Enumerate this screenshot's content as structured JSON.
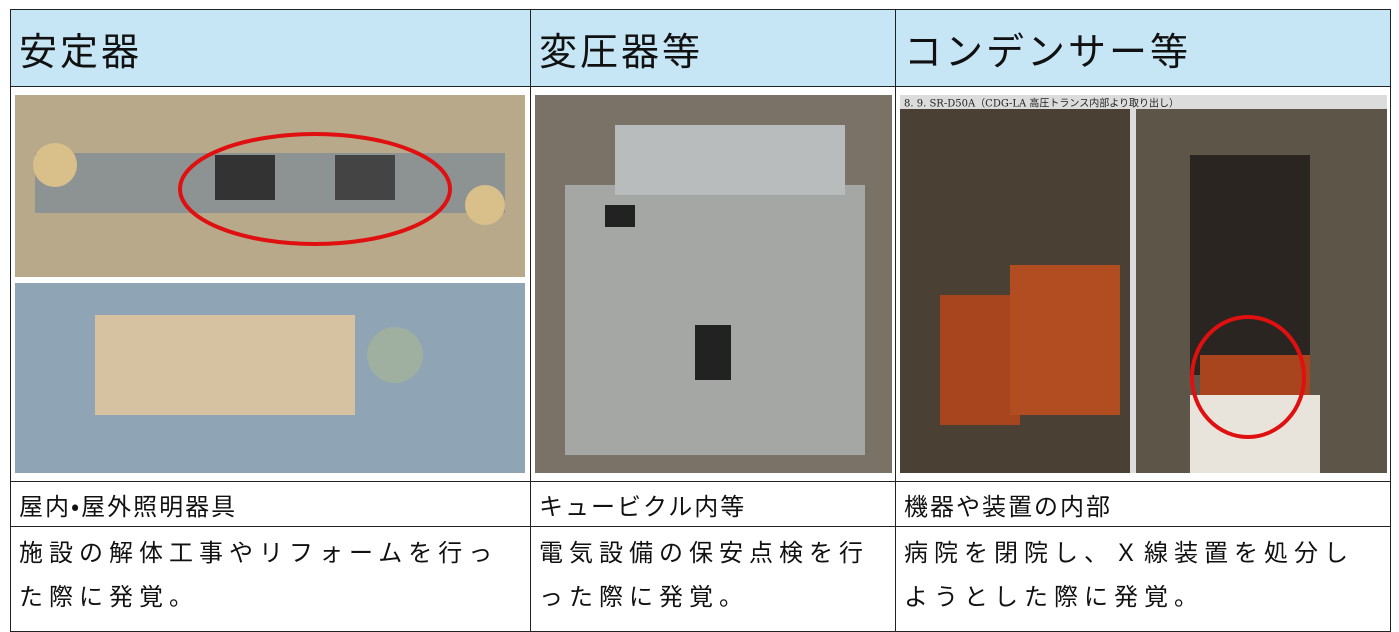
{
  "table": {
    "header": [
      "安定器",
      "変圧器等",
      "コンデンサー等"
    ],
    "rows": [
      [
        "屋内・屋外照明器具",
        "キュービクル内等",
        "機器や装置の内部"
      ],
      [
        "施設の解体工事やリフォームを行った際に発覚。",
        "電気設備の保安点検を行った際に発覚。",
        "病院を閉院し、Ｘ線装置を処分しようとした際に発覚。"
      ]
    ]
  },
  "photo_caption": "8. 9. SR-D50A（CDG-LA 高圧トランス内部より取り出し）"
}
